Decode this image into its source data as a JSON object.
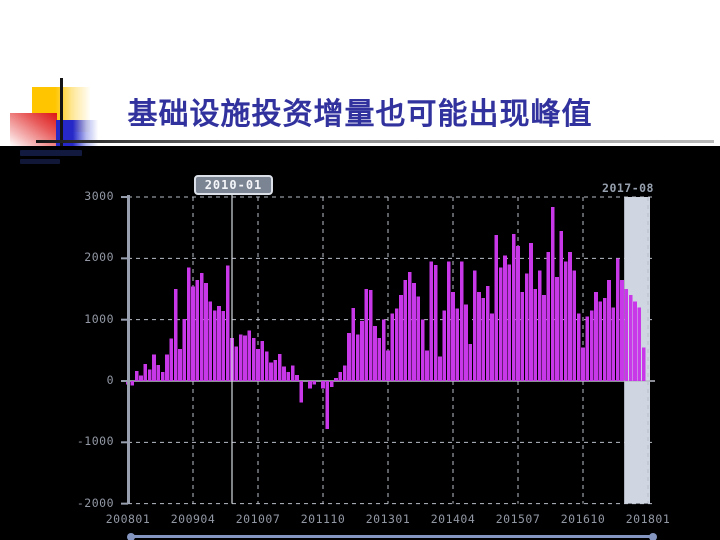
{
  "slide": {
    "title": "基础设施投资增量也可能出现峰值"
  },
  "chart": {
    "cursor_label": "2010-01",
    "end_label": "2017-08"
  },
  "colors": {
    "panel_bg": "#000000",
    "bar": "#c837e8",
    "grid": "#b9bec8",
    "zero_line": "#b9bec8",
    "axis": "#98a0b0",
    "cursor_line": "#d6dade",
    "highlight_band": "#cfd6e2",
    "label_text": "#9298a4",
    "tooltip_bg": "#7b8493",
    "tooltip_border": "#dce0e8",
    "slider": "#8496c0",
    "title_text": "#32329e"
  },
  "chart_data": {
    "type": "bar",
    "x_start": "2008-01",
    "x_frequency": "monthly",
    "x_tick_labels": [
      "200801",
      "200904",
      "201007",
      "201110",
      "201301",
      "201404",
      "201507",
      "201610",
      "201801"
    ],
    "y_tick_values": [
      3000,
      2000,
      1000,
      0,
      -1000,
      -2000
    ],
    "y_tick_labels": [
      "3000",
      "2000",
      "1000",
      "0",
      "-1000",
      "-2000"
    ],
    "ylim": [
      -2000,
      3000
    ],
    "grid": "dashed",
    "legend": "none",
    "cursor": {
      "index": 24,
      "label": "2010-01"
    },
    "end_marker": {
      "label": "2017-08"
    },
    "highlight": {
      "start_index": 115
    },
    "values": [
      -60,
      -70,
      160,
      90,
      280,
      190,
      430,
      260,
      150,
      430,
      690,
      1500,
      520,
      1010,
      1850,
      1540,
      1650,
      1760,
      1600,
      1300,
      1150,
      1220,
      1140,
      1880,
      700,
      560,
      760,
      740,
      820,
      700,
      520,
      650,
      480,
      300,
      340,
      440,
      240,
      150,
      250,
      100,
      -350,
      0,
      -120,
      -60,
      0,
      -120,
      -780,
      -100,
      50,
      150,
      250,
      780,
      1190,
      760,
      980,
      1500,
      1480,
      900,
      700,
      1000,
      500,
      1100,
      1180,
      1400,
      1650,
      1780,
      1600,
      1380,
      1000,
      500,
      1950,
      1890,
      400,
      1150,
      1950,
      1450,
      1180,
      1950,
      1250,
      600,
      1800,
      1450,
      1350,
      1550,
      1100,
      2380,
      1850,
      2050,
      1900,
      2400,
      2200,
      1450,
      1750,
      2250,
      1500,
      1800,
      1400,
      2100,
      2840,
      1700,
      2450,
      1950,
      2100,
      1800,
      1100,
      550,
      1050,
      1150,
      1450,
      1300,
      1350,
      1650,
      1200,
      2000,
      1650,
      1500,
      1400,
      1300,
      1200,
      550
    ]
  }
}
